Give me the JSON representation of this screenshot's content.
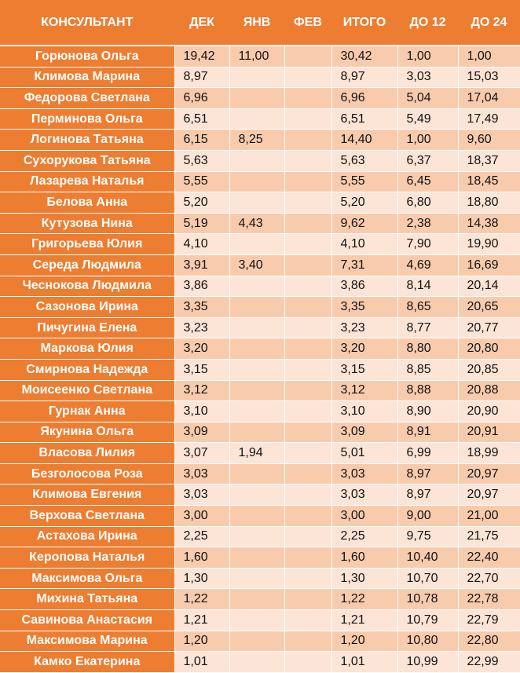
{
  "headers": [
    "КОНСУЛЬТАНТ",
    "ДЕК",
    "ЯНВ",
    "ФЕВ",
    "ИТОГО",
    "ДО 12",
    "ДО 24"
  ],
  "rows": [
    [
      "Горюнова Ольга",
      "19,42",
      "11,00",
      "",
      "30,42",
      "1,00",
      "1,00"
    ],
    [
      "Климова Марина",
      "8,97",
      "",
      "",
      "8,97",
      "3,03",
      "15,03"
    ],
    [
      "Федорова Светлана",
      "6,96",
      "",
      "",
      "6,96",
      "5,04",
      "17,04"
    ],
    [
      "Перминова Ольга",
      "6,51",
      "",
      "",
      "6,51",
      "5,49",
      "17,49"
    ],
    [
      "Логинова Татьяна",
      "6,15",
      "8,25",
      "",
      "14,40",
      "1,00",
      "9,60"
    ],
    [
      "Сухорукова Татьяна",
      "5,63",
      "",
      "",
      "5,63",
      "6,37",
      "18,37"
    ],
    [
      "Лазарева Наталья",
      "5,55",
      "",
      "",
      "5,55",
      "6,45",
      "18,45"
    ],
    [
      "Белова Анна",
      "5,20",
      "",
      "",
      "5,20",
      "6,80",
      "18,80"
    ],
    [
      "Кутузова Нина",
      "5,19",
      "4,43",
      "",
      "9,62",
      "2,38",
      "14,38"
    ],
    [
      "Григорьева Юлия",
      "4,10",
      "",
      "",
      "4,10",
      "7,90",
      "19,90"
    ],
    [
      "Середа Людмила",
      "3,91",
      "3,40",
      "",
      "7,31",
      "4,69",
      "16,69"
    ],
    [
      "Чеснокова Людмила",
      "3,86",
      "",
      "",
      "3,86",
      "8,14",
      "20,14"
    ],
    [
      "Сазонова Ирина",
      "3,35",
      "",
      "",
      "3,35",
      "8,65",
      "20,65"
    ],
    [
      "Пичугина Елена",
      "3,23",
      "",
      "",
      "3,23",
      "8,77",
      "20,77"
    ],
    [
      "Маркова Юлия",
      "3,20",
      "",
      "",
      "3,20",
      "8,80",
      "20,80"
    ],
    [
      "Смирнова Надежда",
      "3,15",
      "",
      "",
      "3,15",
      "8,85",
      "20,85"
    ],
    [
      "Моисеенко Светлана",
      "3,12",
      "",
      "",
      "3,12",
      "8,88",
      "20,88"
    ],
    [
      "Гурнак Анна",
      "3,10",
      "",
      "",
      "3,10",
      "8,90",
      "20,90"
    ],
    [
      "Якунина Ольга",
      "3,09",
      "",
      "",
      "3,09",
      "8,91",
      "20,91"
    ],
    [
      "Власова Лилия",
      "3,07",
      "1,94",
      "",
      "5,01",
      "6,99",
      "18,99"
    ],
    [
      "Безголосова Роза",
      "3,03",
      "",
      "",
      "3,03",
      "8,97",
      "20,97"
    ],
    [
      "Климова Евгения",
      "3,03",
      "",
      "",
      "3,03",
      "8,97",
      "20,97"
    ],
    [
      "Верхова Светлана",
      "3,00",
      "",
      "",
      "3,00",
      "9,00",
      "21,00"
    ],
    [
      "Астахова Ирина",
      "2,25",
      "",
      "",
      "2,25",
      "9,75",
      "21,75"
    ],
    [
      "Керопова Наталья",
      "1,60",
      "",
      "",
      "1,60",
      "10,40",
      "22,40"
    ],
    [
      "Максимова Ольга",
      "1,30",
      "",
      "",
      "1,30",
      "10,70",
      "22,70"
    ],
    [
      "Михина Татьяна",
      "1,22",
      "",
      "",
      "1,22",
      "10,78",
      "22,78"
    ],
    [
      "Савинова Анастасия",
      "1,21",
      "",
      "",
      "1,21",
      "10,79",
      "22,79"
    ],
    [
      "Максимова Марина",
      "1,20",
      "",
      "",
      "1,20",
      "10,80",
      "22,80"
    ],
    [
      "Камко Екатерина",
      "1,01",
      "",
      "",
      "1,01",
      "10,99",
      "22,99"
    ]
  ],
  "colors": {
    "header_bg": "#ed7d31",
    "row_odd_bg": "#f8cbad",
    "row_even_bg": "#fce4d6",
    "header_text": "#ffffff"
  }
}
